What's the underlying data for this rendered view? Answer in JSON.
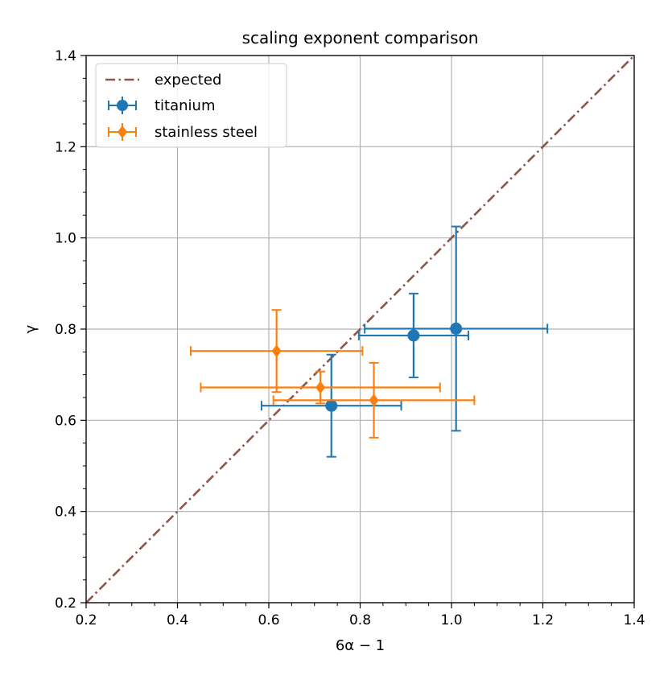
{
  "chart_data": {
    "type": "scatter",
    "title": "scaling exponent comparison",
    "xlabel": "6α − 1",
    "ylabel": "γ",
    "xlim": [
      0.2,
      1.4
    ],
    "ylim": [
      0.2,
      1.4
    ],
    "xticks": [
      "0.2",
      "0.4",
      "0.6",
      "0.8",
      "1.0",
      "1.2",
      "1.4"
    ],
    "yticks": [
      "0.2",
      "0.4",
      "0.6",
      "0.8",
      "1.0",
      "1.2",
      "1.4"
    ],
    "grid": true,
    "legend_position": "top-left",
    "reference_line": {
      "name": "expected",
      "style": "dash-dot",
      "color": "#8c564b",
      "x": [
        0.2,
        1.4
      ],
      "y": [
        0.2,
        1.4
      ]
    },
    "series": [
      {
        "name": "titanium",
        "color": "#1f77b4",
        "marker": "circle",
        "points": [
          {
            "x": 0.737,
            "y": 0.632,
            "xerr": 0.153,
            "yerr": 0.112
          },
          {
            "x": 0.917,
            "y": 0.786,
            "xerr": 0.12,
            "yerr": 0.092
          },
          {
            "x": 1.01,
            "y": 0.801,
            "xerr": 0.2,
            "yerr": 0.224
          }
        ]
      },
      {
        "name": "stainless steel",
        "color": "#ff7f0e",
        "marker": "diamond",
        "points": [
          {
            "x": 0.617,
            "y": 0.752,
            "xerr": 0.188,
            "yerr": 0.09
          },
          {
            "x": 0.713,
            "y": 0.672,
            "xerr": 0.262,
            "yerr": 0.035
          },
          {
            "x": 0.83,
            "y": 0.644,
            "xerr": 0.22,
            "yerr": 0.082
          }
        ]
      }
    ]
  }
}
